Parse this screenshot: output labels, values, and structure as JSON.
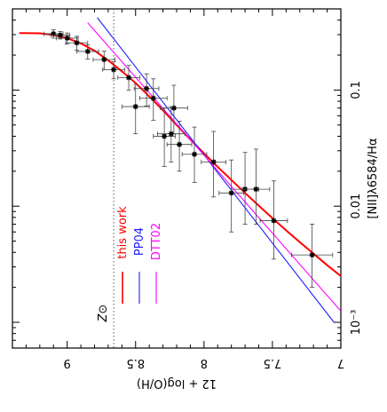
{
  "chart_data": {
    "type": "scatter",
    "orientation": "rotated-90",
    "x_axis": {
      "label": "12 + log(O/H)",
      "range": [
        9.4,
        7.0
      ],
      "ticks": [
        "9",
        "8.5",
        "8",
        "7.5",
        "7"
      ],
      "tick_values": [
        9.0,
        8.5,
        8.0,
        7.5,
        7.0
      ]
    },
    "y_axis": {
      "label": "[NII]λ6584/Hα",
      "scale": "log",
      "range": [
        0.0006,
        0.5
      ],
      "ticks": [
        "0.1",
        "0.01",
        "10⁻³"
      ],
      "tick_values": [
        0.1,
        0.01,
        0.001
      ]
    },
    "reference_line": {
      "label": "Z⊙",
      "value": 8.66,
      "style": "dotted"
    },
    "points": [
      {
        "x": 9.1,
        "y": 0.305,
        "xerr": 0.07,
        "yerr_lo": 0.025,
        "yerr_hi": 0.025
      },
      {
        "x": 9.05,
        "y": 0.297,
        "xerr": 0.07,
        "yerr_lo": 0.022,
        "yerr_hi": 0.022
      },
      {
        "x": 9.0,
        "y": 0.28,
        "xerr": 0.08,
        "yerr_lo": 0.03,
        "yerr_hi": 0.03
      },
      {
        "x": 8.93,
        "y": 0.255,
        "xerr": 0.08,
        "yerr_lo": 0.035,
        "yerr_hi": 0.035
      },
      {
        "x": 8.85,
        "y": 0.215,
        "xerr": 0.08,
        "yerr_lo": 0.03,
        "yerr_hi": 0.03
      },
      {
        "x": 8.73,
        "y": 0.183,
        "xerr": 0.08,
        "yerr_lo": 0.033,
        "yerr_hi": 0.033
      },
      {
        "x": 8.66,
        "y": 0.15,
        "xerr": 0.08,
        "yerr_lo": 0.025,
        "yerr_hi": 0.025
      },
      {
        "x": 8.55,
        "y": 0.128,
        "xerr": 0.08,
        "yerr_lo": 0.028,
        "yerr_hi": 0.035
      },
      {
        "x": 8.42,
        "y": 0.103,
        "xerr": 0.09,
        "yerr_lo": 0.03,
        "yerr_hi": 0.035
      },
      {
        "x": 8.37,
        "y": 0.085,
        "xerr": 0.1,
        "yerr_lo": 0.03,
        "yerr_hi": 0.04
      },
      {
        "x": 8.5,
        "y": 0.072,
        "xerr": 0.1,
        "yerr_lo": 0.03,
        "yerr_hi": 0.04
      },
      {
        "x": 8.22,
        "y": 0.07,
        "xerr": 0.1,
        "yerr_lo": 0.028,
        "yerr_hi": 0.04
      },
      {
        "x": 8.29,
        "y": 0.04,
        "xerr": 0.08,
        "yerr_lo": 0.018,
        "yerr_hi": 0.03
      },
      {
        "x": 8.24,
        "y": 0.042,
        "xerr": 0.1,
        "yerr_lo": 0.018,
        "yerr_hi": 0.03
      },
      {
        "x": 8.18,
        "y": 0.034,
        "xerr": 0.09,
        "yerr_lo": 0.014,
        "yerr_hi": 0.02
      },
      {
        "x": 8.07,
        "y": 0.028,
        "xerr": 0.09,
        "yerr_lo": 0.012,
        "yerr_hi": 0.02
      },
      {
        "x": 7.93,
        "y": 0.024,
        "xerr": 0.09,
        "yerr_lo": 0.012,
        "yerr_hi": 0.02
      },
      {
        "x": 7.8,
        "y": 0.013,
        "xerr": 0.09,
        "yerr_lo": 0.007,
        "yerr_hi": 0.012
      },
      {
        "x": 7.7,
        "y": 0.014,
        "xerr": 0.1,
        "yerr_lo": 0.007,
        "yerr_hi": 0.015
      },
      {
        "x": 7.62,
        "y": 0.014,
        "xerr": 0.1,
        "yerr_lo": 0.007,
        "yerr_hi": 0.017
      },
      {
        "x": 7.49,
        "y": 0.0075,
        "xerr": 0.1,
        "yerr_lo": 0.004,
        "yerr_hi": 0.009
      },
      {
        "x": 7.21,
        "y": 0.0038,
        "xerr": 0.15,
        "yerr_lo": 0.0018,
        "yerr_hi": 0.0032
      }
    ],
    "series": [
      {
        "name": "this work",
        "color": "#ff0000",
        "x": [
          9.35,
          9.2,
          9.1,
          9.0,
          8.9,
          8.8,
          8.7,
          8.6,
          8.5,
          8.4,
          8.3,
          8.2,
          8.1,
          8.0,
          7.9,
          7.8,
          7.7,
          7.6,
          7.5,
          7.4,
          7.3,
          7.2,
          7.1,
          7.0
        ],
        "y": [
          0.31,
          0.308,
          0.298,
          0.28,
          0.252,
          0.218,
          0.18,
          0.145,
          0.115,
          0.088,
          0.067,
          0.05,
          0.0375,
          0.0285,
          0.0218,
          0.0168,
          0.013,
          0.0101,
          0.0079,
          0.0062,
          0.0049,
          0.0039,
          0.0031,
          0.0025
        ]
      },
      {
        "name": "PP04",
        "color": "#2020ff",
        "x": [
          8.78,
          7.05
        ],
        "y": [
          0.42,
          0.001
        ]
      },
      {
        "name": "DTT02",
        "color": "#ff00ff",
        "x": [
          8.85,
          7.0
        ],
        "y": [
          0.38,
          0.00125
        ]
      }
    ],
    "legend": {
      "position": "bottom-left",
      "orientation": "rotated"
    }
  }
}
